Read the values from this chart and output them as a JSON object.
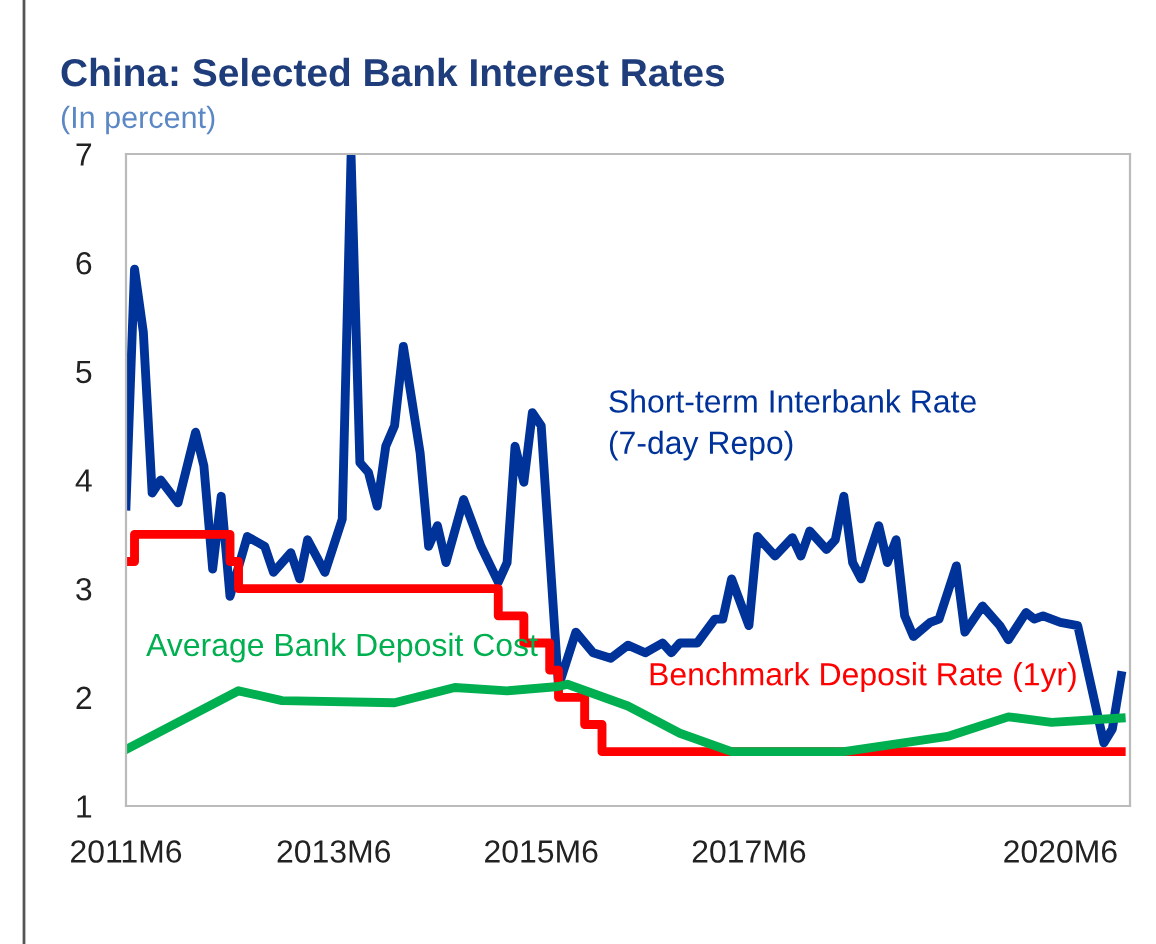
{
  "chart_data": {
    "type": "line",
    "title": "China: Selected Bank Interest Rates",
    "subtitle": "(In percent)",
    "xlim": [
      "2011-06",
      "2021-02"
    ],
    "ylim": [
      1,
      7
    ],
    "yticks": [
      1,
      2,
      3,
      4,
      5,
      6,
      7
    ],
    "xticks": [
      {
        "value": "2011-06",
        "label": "2011M6"
      },
      {
        "value": "2013-06",
        "label": "2013M6"
      },
      {
        "value": "2015-06",
        "label": "2015M6"
      },
      {
        "value": "2017-06",
        "label": "2017M6"
      },
      {
        "value": "2020-06",
        "label": "2020M6"
      }
    ],
    "grid": false,
    "legend": false,
    "marker": "none",
    "line_style": "solid",
    "series": [
      {
        "name": "Short-term Interbank Rate\n(7-day Repo)",
        "color": "#003399",
        "x": [
          "2011-06",
          "2011-07",
          "2011-08",
          "2011-09",
          "2011-10",
          "2011-12",
          "2012-02",
          "2012-03",
          "2012-04",
          "2012-05",
          "2012-06",
          "2012-08",
          "2012-10",
          "2012-11",
          "2013-01",
          "2013-02",
          "2013-03",
          "2013-05",
          "2013-07",
          "2013-08",
          "2013-09",
          "2013-10",
          "2013-11",
          "2013-12",
          "2014-01",
          "2014-02",
          "2014-04",
          "2014-05",
          "2014-06",
          "2014-07",
          "2014-09",
          "2014-11",
          "2015-01",
          "2015-02",
          "2015-03",
          "2015-04",
          "2015-05",
          "2015-06",
          "2015-08",
          "2015-10",
          "2015-12",
          "2016-02",
          "2016-04",
          "2016-06",
          "2016-08",
          "2016-09",
          "2016-10",
          "2016-12",
          "2017-02",
          "2017-03",
          "2017-04",
          "2017-06",
          "2017-07",
          "2017-09",
          "2017-11",
          "2017-12",
          "2018-01",
          "2018-03",
          "2018-04",
          "2018-05",
          "2018-06",
          "2018-07",
          "2018-09",
          "2018-10",
          "2018-11",
          "2018-12",
          "2019-01",
          "2019-03",
          "2019-04",
          "2019-06",
          "2019-07",
          "2019-09",
          "2019-11",
          "2019-12",
          "2020-02",
          "2020-03",
          "2020-04",
          "2020-06",
          "2020-08",
          "2020-11",
          "2020-12",
          "2021-01"
        ],
        "values": [
          3.76,
          5.94,
          5.36,
          3.88,
          4.0,
          3.79,
          4.44,
          4.13,
          3.18,
          3.85,
          2.93,
          3.48,
          3.39,
          3.15,
          3.33,
          3.09,
          3.45,
          3.15,
          3.64,
          6.98,
          4.16,
          4.07,
          3.76,
          4.31,
          4.5,
          5.23,
          4.25,
          3.39,
          3.58,
          3.24,
          3.82,
          3.39,
          3.06,
          3.24,
          4.31,
          3.98,
          4.62,
          4.5,
          2.1,
          2.6,
          2.41,
          2.36,
          2.48,
          2.41,
          2.5,
          2.41,
          2.5,
          2.5,
          2.72,
          2.72,
          3.09,
          2.66,
          3.48,
          3.3,
          3.47,
          3.3,
          3.53,
          3.36,
          3.45,
          3.85,
          3.24,
          3.09,
          3.58,
          3.24,
          3.45,
          2.75,
          2.56,
          2.69,
          2.72,
          3.21,
          2.6,
          2.84,
          2.66,
          2.53,
          2.78,
          2.72,
          2.75,
          2.69,
          2.66,
          1.58,
          1.71,
          2.2
        ]
      },
      {
        "name": "Benchmark Deposit Rate (1yr)",
        "color": "#ff0000",
        "type": "step",
        "x": [
          "2011-06",
          "2011-07",
          "2012-06",
          "2012-07",
          "2015-01",
          "2015-04",
          "2015-07",
          "2015-08",
          "2015-11",
          "2016-01",
          "2021-01"
        ],
        "values": [
          3.25,
          3.5,
          3.25,
          3.0,
          2.75,
          2.5,
          2.25,
          2.0,
          1.75,
          1.5,
          1.5
        ]
      },
      {
        "name": "Average Bank Deposit Cost",
        "color": "#00b050",
        "x": [
          "2011-06",
          "2012-07",
          "2012-12",
          "2014-01",
          "2014-08",
          "2015-02",
          "2015-08",
          "2015-09",
          "2016-04",
          "2016-10",
          "2017-04",
          "2018-05",
          "2019-05",
          "2019-12",
          "2020-05",
          "2021-01"
        ],
        "values": [
          1.52,
          2.06,
          1.97,
          1.95,
          2.09,
          2.06,
          2.1,
          2.12,
          1.92,
          1.67,
          1.5,
          1.5,
          1.64,
          1.82,
          1.77,
          1.81
        ]
      }
    ]
  }
}
